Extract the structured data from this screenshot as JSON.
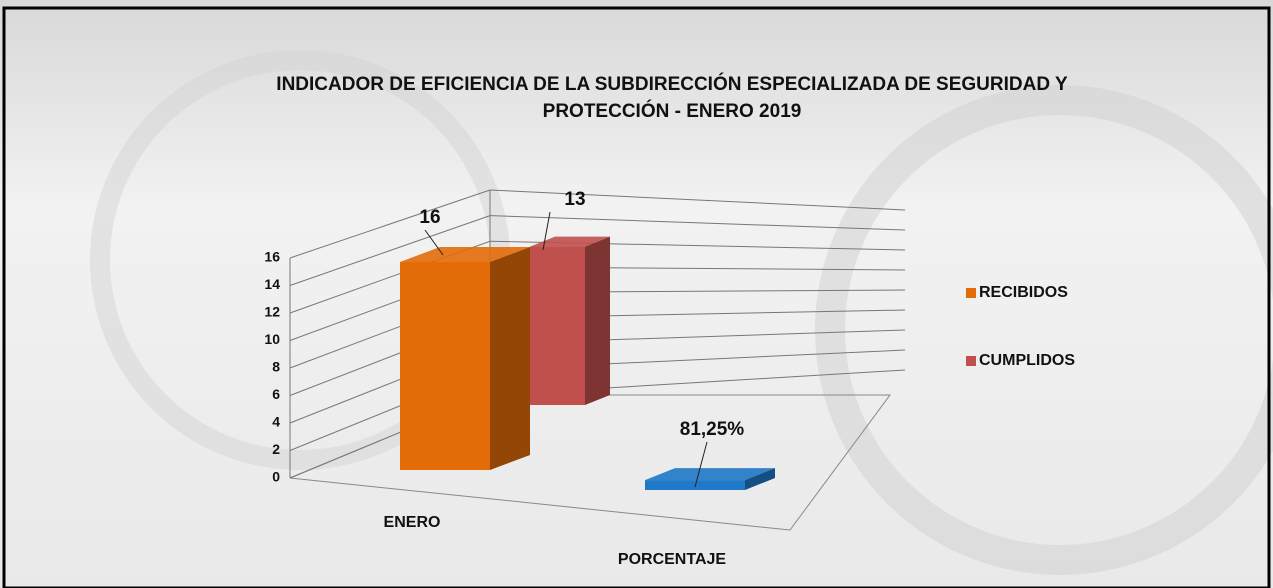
{
  "chart_data": {
    "type": "bar3d",
    "title": [
      "INDICADOR DE EFICIENCIA DE LA SUBDIRECCIÓN ESPECIALIZADA DE SEGURIDAD Y",
      "PROTECCIÓN -  ENERO 2019"
    ],
    "categories": [
      "ENERO",
      "PORCENTAJE"
    ],
    "series": [
      {
        "name": "RECIBIDOS",
        "color": "#e36c09",
        "point_colors": [
          "#e36c09",
          "#1f78c8"
        ],
        "values": [
          16,
          0.8125
        ],
        "value_labels": [
          "16",
          "81,25%"
        ]
      },
      {
        "name": "CUMPLIDOS",
        "color": "#c0504d",
        "values": [
          13,
          null
        ]
      }
    ],
    "ylim": [
      0,
      16
    ],
    "yticks": [
      0,
      2,
      4,
      6,
      8,
      10,
      12,
      14,
      16
    ],
    "grid": true,
    "legend": "right"
  }
}
